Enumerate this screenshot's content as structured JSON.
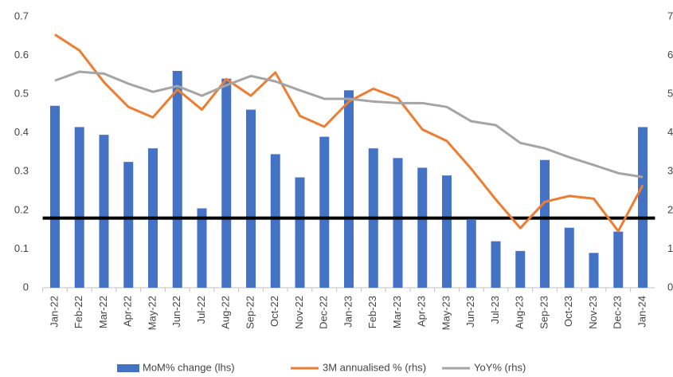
{
  "chart_data": {
    "type": "bar_line",
    "categories": [
      "Jan-22",
      "Feb-22",
      "Mar-22",
      "Apr-22",
      "May-22",
      "Jun-22",
      "Jul-22",
      "Aug-22",
      "Sep-22",
      "Oct-22",
      "Nov-22",
      "Dec-22",
      "Jan-23",
      "Feb-23",
      "Mar-23",
      "Apr-23",
      "May-23",
      "Jun-23",
      "Jul-23",
      "Aug-23",
      "Sep-23",
      "Oct-23",
      "Nov-23",
      "Dec-23",
      "Jan-24"
    ],
    "series": [
      {
        "name": "MoM% change (lhs)",
        "type": "bar",
        "color": "#4472c4",
        "values": [
          0.47,
          0.415,
          0.395,
          0.325,
          0.36,
          0.56,
          0.205,
          0.54,
          0.46,
          0.345,
          0.285,
          0.39,
          0.51,
          0.36,
          0.335,
          0.31,
          0.29,
          0.175,
          0.12,
          0.095,
          0.33,
          0.155,
          0.09,
          0.145,
          0.415
        ]
      },
      {
        "name": "3M annualised % (rhs)",
        "type": "line",
        "axis": "y2",
        "color": "#ed7d31",
        "values": [
          6.54,
          6.13,
          5.31,
          4.67,
          4.4,
          5.12,
          4.6,
          5.39,
          4.96,
          5.56,
          4.44,
          4.16,
          4.81,
          5.14,
          4.9,
          4.09,
          3.79,
          3.07,
          2.28,
          1.54,
          2.22,
          2.37,
          2.3,
          1.46,
          2.65
        ]
      },
      {
        "name": "YoY% (rhs)",
        "type": "line",
        "axis": "y2",
        "color": "#a5a5a5",
        "values": [
          5.35,
          5.58,
          5.53,
          5.27,
          5.06,
          5.21,
          4.96,
          5.23,
          5.47,
          5.33,
          5.1,
          4.88,
          4.88,
          4.81,
          4.77,
          4.77,
          4.67,
          4.3,
          4.2,
          3.74,
          3.6,
          3.37,
          3.17,
          2.96,
          2.86
        ]
      }
    ],
    "reference_line": {
      "value": 0.18,
      "color": "#000000"
    },
    "ylim": [
      0,
      0.7
    ],
    "yticks": [
      0,
      0.1,
      0.2,
      0.3,
      0.4,
      0.5,
      0.6,
      0.7
    ],
    "y2lim": [
      0,
      7
    ],
    "y2ticks": [
      0,
      1,
      2,
      3,
      4,
      5,
      6,
      7
    ],
    "grid": false,
    "legend": "bottom"
  }
}
